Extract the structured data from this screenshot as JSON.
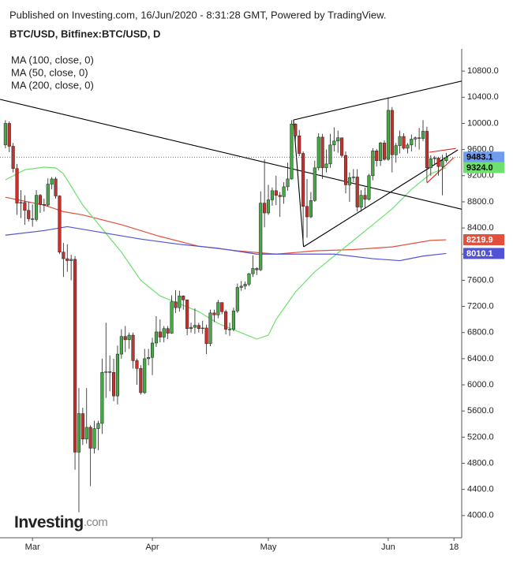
{
  "header": {
    "published": "Published on Investing.com, 16/Jun/2020 - 8:31:28 GMT, Powered by TradingView."
  },
  "logo": {
    "name": "Investing",
    "suffix": ".com"
  },
  "chart_data": {
    "type": "candlestick",
    "title": "BTC/USD, Bitfinex:BTC/USD, D",
    "up_color": "#46a846",
    "down_color": "#c8302c",
    "open": [
      9670,
      10000,
      9650,
      9310,
      8780,
      8790,
      8670,
      8540,
      8530,
      8900,
      8760,
      8750,
      9070,
      9150,
      8890,
      8030,
      7930,
      7900,
      7920,
      4970,
      5560,
      5170,
      5350,
      5030,
      5330,
      5410,
      6190,
      6200,
      6190,
      5830,
      6470,
      6740,
      6690,
      6760,
      6370,
      6250,
      5880,
      6400,
      6420,
      6640,
      6810,
      6730,
      6860,
      6790,
      7270,
      7180,
      7360,
      7300,
      6860,
      6880,
      6910,
      6860,
      6870,
      6630,
      7100,
      7070,
      7260,
      7120,
      6850,
      6850,
      7130,
      7490,
      7510,
      7540,
      7700,
      7780,
      7760,
      8780,
      8630,
      8830,
      8970,
      8900,
      8880,
      9030,
      9150,
      9990,
      9810,
      9540,
      8730,
      8570,
      8820,
      9320,
      9790,
      9320,
      9380,
      9670,
      9730,
      9780,
      9510,
      9060,
      9170,
      9180,
      8720,
      8900,
      8840,
      9200,
      9580,
      9430,
      9700,
      9450,
      10200,
      9520,
      9660,
      9800,
      9620,
      9670,
      9760,
      9780,
      9770,
      9880,
      9320,
      9460,
      9470,
      9340,
      9430
    ],
    "high": [
      10050,
      10030,
      9700,
      9380,
      8980,
      8900,
      8800,
      8760,
      8980,
      8920,
      8850,
      9160,
      9180,
      9180,
      8900,
      8170,
      8150,
      7990,
      7970,
      5950,
      5650,
      5950,
      5380,
      5450,
      5450,
      6400,
      6950,
      6450,
      6400,
      6600,
      6850,
      6900,
      6800,
      6800,
      6400,
      6300,
      6550,
      6550,
      6720,
      7050,
      7000,
      6900,
      6900,
      7370,
      7450,
      7440,
      7370,
      7300,
      6950,
      7170,
      6950,
      6980,
      6920,
      7150,
      7150,
      7300,
      7250,
      7150,
      6950,
      7180,
      7550,
      7590,
      7580,
      7710,
      7980,
      7800,
      8960,
      9450,
      9060,
      9020,
      9200,
      8950,
      9100,
      9400,
      10050,
      10000,
      9900,
      9570,
      9150,
      8950,
      9430,
      9850,
      9840,
      9600,
      9840,
      9940,
      9890,
      9780,
      9570,
      9250,
      9300,
      9300,
      8980,
      9020,
      9230,
      9620,
      9610,
      9720,
      9740,
      10400,
      10250,
      9700,
      9890,
      9850,
      9700,
      9830,
      9800,
      9930,
      10050,
      9950,
      9510,
      9500,
      9480,
      9520,
      9550
    ],
    "low": [
      9620,
      9560,
      9250,
      8600,
      8550,
      8450,
      8500,
      8420,
      8500,
      8630,
      8650,
      8730,
      8990,
      8850,
      8000,
      7650,
      7730,
      7600,
      4700,
      4050,
      5080,
      5100,
      4450,
      4950,
      5000,
      5250,
      5800,
      5900,
      5750,
      5700,
      6400,
      6500,
      6550,
      6250,
      6000,
      5850,
      5860,
      6300,
      6150,
      6580,
      6650,
      6650,
      6700,
      6780,
      7100,
      7120,
      7150,
      6760,
      6800,
      6780,
      6800,
      6780,
      6470,
      6590,
      6960,
      7020,
      7080,
      6770,
      6750,
      6820,
      7100,
      7440,
      7460,
      7510,
      7650,
      7680,
      7740,
      8410,
      8600,
      8740,
      8750,
      8570,
      8770,
      8970,
      9140,
      9720,
      9500,
      8150,
      8250,
      8550,
      8800,
      9280,
      9150,
      9250,
      9320,
      9570,
      9550,
      9480,
      8930,
      8800,
      9100,
      8650,
      8650,
      8700,
      8820,
      9130,
      9340,
      9350,
      9430,
      9430,
      9250,
      9400,
      9540,
      9600,
      9540,
      9570,
      9640,
      9600,
      9730,
      9100,
      9200,
      9360,
      9200,
      8900,
      9400
    ],
    "close": [
      10000,
      9650,
      9310,
      8780,
      8790,
      8670,
      8540,
      8530,
      8900,
      8760,
      8750,
      9070,
      9150,
      8890,
      8030,
      7930,
      7900,
      7920,
      4970,
      5560,
      5170,
      5350,
      5030,
      5330,
      5410,
      6190,
      6200,
      6190,
      5830,
      6470,
      6740,
      6690,
      6760,
      6370,
      6250,
      5880,
      6400,
      6420,
      6640,
      6810,
      6730,
      6860,
      6790,
      7270,
      7180,
      7360,
      7300,
      6860,
      6880,
      6910,
      6860,
      6870,
      6630,
      7100,
      7070,
      7260,
      7120,
      6850,
      6850,
      7130,
      7490,
      7510,
      7540,
      7700,
      7780,
      7760,
      8780,
      8630,
      8830,
      8970,
      8900,
      8880,
      9030,
      9150,
      9990,
      9810,
      9540,
      8730,
      8570,
      8820,
      9320,
      9790,
      9320,
      9380,
      9670,
      9730,
      9780,
      9510,
      9060,
      9170,
      9180,
      8720,
      8900,
      8840,
      9200,
      9580,
      9430,
      9700,
      9450,
      10200,
      9520,
      9660,
      9800,
      9620,
      9670,
      9760,
      9780,
      9770,
      9880,
      9320,
      9460,
      9470,
      9340,
      9430,
      9483.1
    ],
    "last_color": "#6f9cf0",
    "series": [
      {
        "name": "MA (100, close, 0)",
        "color": "#e2503c",
        "x": [
          0,
          10,
          15,
          20,
          30,
          40,
          50,
          60,
          70,
          80,
          90,
          100,
          110,
          114
        ],
        "values": [
          8870,
          8750,
          8650,
          8600,
          8450,
          8270,
          8120,
          8050,
          8000,
          8050,
          8070,
          8110,
          8210,
          8219.9
        ]
      },
      {
        "name": "MA (50, close, 0)",
        "color": "#6ee06e",
        "x": [
          0,
          5,
          10,
          13,
          15,
          20,
          25,
          30,
          35,
          40,
          45,
          50,
          55,
          60,
          65,
          68,
          70,
          75,
          80,
          85,
          90,
          95,
          100,
          105,
          110,
          114
        ],
        "values": [
          9136,
          9290,
          9330,
          9320,
          9230,
          8750,
          8390,
          8030,
          7600,
          7360,
          7240,
          7120,
          6940,
          6820,
          6700,
          6760,
          7000,
          7420,
          7730,
          7970,
          8210,
          8450,
          8690,
          8990,
          9230,
          9324
        ],
        "value_labels": [
          null,
          null,
          null,
          null,
          null,
          null,
          null,
          null,
          null,
          null,
          null,
          null,
          null,
          null,
          null,
          null,
          null,
          null,
          null,
          null,
          null,
          null,
          null,
          null,
          null,
          "9324.0"
        ]
      },
      {
        "name": "MA (200, close, 0)",
        "color": "#5252d8",
        "x": [
          0,
          10,
          16,
          25,
          35,
          45,
          55,
          65,
          75,
          85,
          95,
          102,
          108,
          114
        ],
        "values": [
          8290,
          8360,
          8420,
          8330,
          8230,
          8150,
          8090,
          8000,
          8000,
          8000,
          7930,
          7900,
          7970,
          8010.1
        ]
      }
    ],
    "trendlines": [
      {
        "color": "#000000",
        "x": [
          -1.4,
          118
        ],
        "values": [
          10368,
          8687
        ]
      },
      {
        "color": "#000000",
        "x": [
          74.5,
          118.6
        ],
        "values": [
          10053,
          10656
        ]
      },
      {
        "color": "#000000",
        "x": [
          77.1,
          117
        ],
        "values": [
          8112,
          9594
        ]
      },
      {
        "color": "#000000",
        "x": [
          74.5,
          77.1
        ],
        "values": [
          10053,
          8112
        ]
      },
      {
        "color": "#e02020",
        "x": [
          109.6,
          116.5
        ],
        "values": [
          9558,
          9618
        ]
      },
      {
        "color": "#e02020",
        "x": [
          109.0,
          115.9
        ],
        "values": [
          9088,
          9474
        ]
      }
    ],
    "xlim": [
      -1.4,
      118
    ],
    "xticks": [
      {
        "value": 7,
        "label": "Mar"
      },
      {
        "value": 38,
        "label": "Apr"
      },
      {
        "value": 68,
        "label": "May"
      },
      {
        "value": 99,
        "label": "Jun"
      },
      {
        "value": 116,
        "label": "18"
      }
    ],
    "ylim": [
      3660,
      11140
    ],
    "yticks": [
      {
        "value": 4000,
        "label": "4000.0"
      },
      {
        "value": 4400,
        "label": "4400.0"
      },
      {
        "value": 4800,
        "label": "4800.0"
      },
      {
        "value": 5200,
        "label": "5200.0"
      },
      {
        "value": 5600,
        "label": "5600.0"
      },
      {
        "value": 6000,
        "label": "6000.0"
      },
      {
        "value": 6400,
        "label": "6400.0"
      },
      {
        "value": 6800,
        "label": "6800.0"
      },
      {
        "value": 7200,
        "label": "7200.0"
      },
      {
        "value": 7600,
        "label": "7600.0"
      },
      {
        "value": 8000,
        "label": "8000.0"
      },
      {
        "value": 8400,
        "label": "8400.0"
      },
      {
        "value": 8800,
        "label": "8800.0"
      },
      {
        "value": 9200,
        "label": "9200.0"
      },
      {
        "value": 9600,
        "label": "9600.0"
      },
      {
        "value": 10000,
        "label": "10000.0"
      },
      {
        "value": 10400,
        "label": "10400.0"
      },
      {
        "value": 10800,
        "label": "10800.0"
      }
    ],
    "grid": false,
    "price_line": true
  }
}
